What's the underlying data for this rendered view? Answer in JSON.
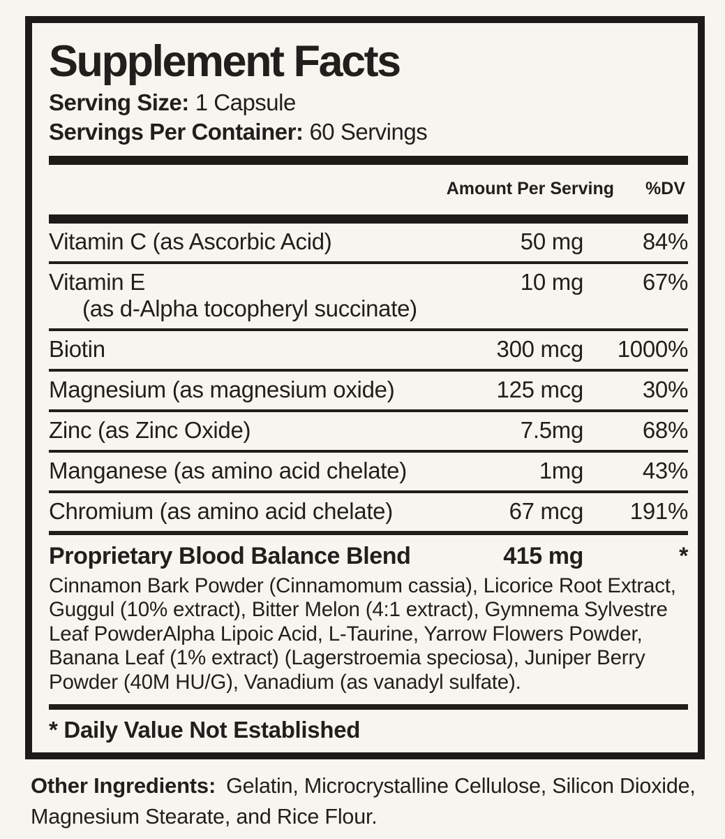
{
  "label": {
    "title": "Supplement Facts",
    "serving_size_label": "Serving Size:",
    "serving_size_value": "1 Capsule",
    "servings_per_container_label": "Servings Per Container:",
    "servings_per_container_value": "60 Servings",
    "columns": {
      "amount": "Amount Per Serving",
      "dv": "%DV"
    },
    "rows": [
      {
        "name": "Vitamin C (as Ascorbic Acid)",
        "amount": "50 mg",
        "dv": "84%"
      },
      {
        "name": "Vitamin E",
        "sub": "(as d-Alpha tocopheryl succinate)",
        "amount": "10 mg",
        "dv": "67%"
      },
      {
        "name": "Biotin",
        "amount": "300 mcg",
        "dv": "1000%"
      },
      {
        "name": "Magnesium (as magnesium oxide)",
        "amount": "125 mcg",
        "dv": "30%"
      },
      {
        "name": "Zinc (as Zinc Oxide)",
        "amount": "7.5mg",
        "dv": "68%"
      },
      {
        "name": "Manganese (as amino acid chelate)",
        "amount": "1mg",
        "dv": "43%"
      },
      {
        "name": "Chromium (as amino acid chelate)",
        "amount": "67 mcg",
        "dv": "191%"
      }
    ],
    "blend": {
      "name": "Proprietary Blood Balance Blend",
      "amount": "415 mg",
      "dv": "*",
      "ingredients": "Cinnamon Bark Powder (Cinnamomum cassia), Licorice Root Extract, Guggul (10% extract), Bitter Melon (4:1 extract), Gymnema Sylvestre Leaf PowderAlpha Lipoic Acid, L-Taurine, Yarrow Flowers Powder, Banana Leaf (1% extract) (Lagerstroemia speciosa), Juniper Berry Powder (40M HU/G), Vanadium (as vanadyl sulfate)."
    },
    "footnote": "* Daily Value Not Established",
    "other_ingredients_label": "Other Ingredients:",
    "other_ingredients_value": "Gelatin, Microcrystalline Cellulose, Silicon Dioxide, Magnesium Stearate, and Rice Flour.",
    "colors": {
      "ink": "#221e1c",
      "background": "#f7f5f0"
    }
  }
}
